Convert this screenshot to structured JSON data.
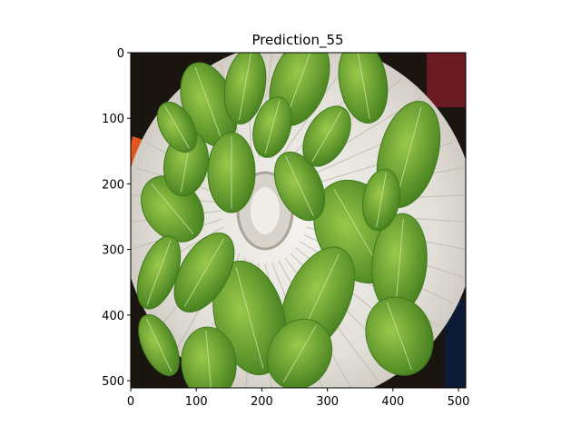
{
  "figure": {
    "title": "Prediction_55",
    "image_description_icon": "photo-dehydrator-tray-with-green-leaves"
  },
  "axes": {
    "x_ticks": [
      "0",
      "100",
      "200",
      "300",
      "400",
      "500"
    ],
    "y_ticks": [
      "0",
      "100",
      "200",
      "300",
      "400",
      "500"
    ],
    "x_range": [
      0,
      511
    ],
    "y_range": [
      511,
      0
    ]
  },
  "colors": {
    "leaf_dark": "#3f7a1c",
    "leaf_light": "#7fb23a",
    "tray_white": "#e8e6e0",
    "background_dark": "#1b1510",
    "handle_orange": "#e0561c"
  }
}
